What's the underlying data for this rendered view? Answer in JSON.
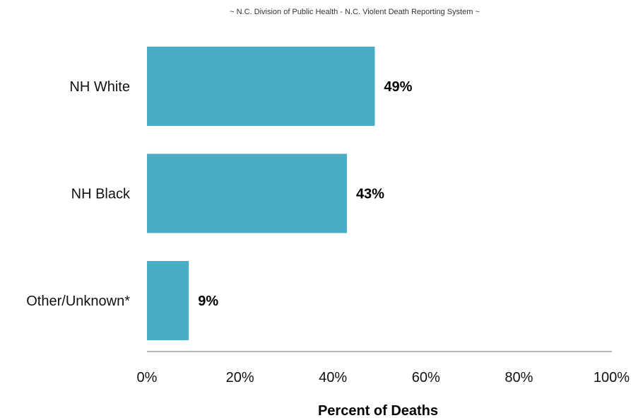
{
  "chart_data": {
    "type": "bar",
    "orientation": "horizontal",
    "subtitle": "~ N.C. Division of Public Health - N.C. Violent Death Reporting System ~",
    "categories": [
      "NH White",
      "NH Black",
      "Other/Unknown*"
    ],
    "values": [
      49,
      43,
      9
    ],
    "data_labels": [
      "49%",
      "43%",
      "9%"
    ],
    "xlabel": "Percent of Deaths",
    "xlim": [
      0,
      100
    ],
    "x_ticks": [
      "0%",
      "20%",
      "40%",
      "60%",
      "80%",
      "100%"
    ],
    "grid": false,
    "bar_color": "#4BACC6"
  }
}
